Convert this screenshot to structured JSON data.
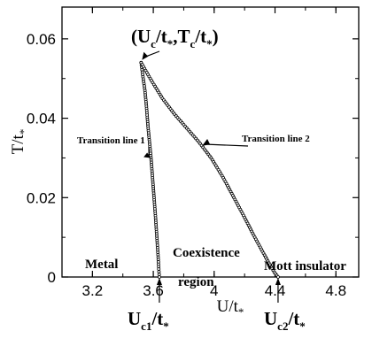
{
  "chart_data": {
    "type": "scatter",
    "title": "",
    "xlabel": "U/t",
    "xlabel_sub": "*",
    "ylabel": "T/t",
    "ylabel_sub": "*",
    "xlim": [
      3.0,
      4.95
    ],
    "ylim": [
      0,
      0.068
    ],
    "xticks": [
      3.2,
      3.6,
      4,
      4.4,
      4.8
    ],
    "xtick_labels": [
      "3.2",
      "3.6",
      "4",
      "4.4",
      "4.8"
    ],
    "yticks": [
      0,
      0.02,
      0.04,
      0.06
    ],
    "ytick_labels": [
      "0",
      "0.02",
      "0.04",
      "0.06"
    ],
    "grid": false,
    "series": [
      {
        "name": "Transition line 1",
        "x": [
          3.52,
          3.53,
          3.545,
          3.555,
          3.565,
          3.575,
          3.585,
          3.595,
          3.605,
          3.613,
          3.62,
          3.627,
          3.632,
          3.636,
          3.64
        ],
        "y": [
          0.054,
          0.051,
          0.047,
          0.043,
          0.038,
          0.034,
          0.03,
          0.025,
          0.02,
          0.016,
          0.012,
          0.008,
          0.005,
          0.002,
          0.0
        ]
      },
      {
        "name": "Transition line 2",
        "x": [
          3.52,
          3.58,
          3.66,
          3.74,
          3.82,
          3.9,
          3.98,
          4.06,
          4.13,
          4.2,
          4.26,
          4.31,
          4.36,
          4.395,
          4.42
        ],
        "y": [
          0.054,
          0.05,
          0.045,
          0.041,
          0.0375,
          0.034,
          0.03,
          0.025,
          0.02,
          0.015,
          0.0105,
          0.007,
          0.0035,
          0.0012,
          0.0
        ]
      }
    ],
    "labels": {
      "critical_point": "(U",
      "critical_point_parts": [
        "(U",
        "c",
        "/t",
        "*",
        ",T",
        "c",
        "/t",
        "*",
        ")"
      ],
      "line1": "Transition line 1",
      "line2": "Transition line 2",
      "metal": "Metal",
      "coexistence_1": "Coexistence",
      "coexistence_2": "region",
      "mott": "Mott insulator",
      "uc1_parts": [
        "U",
        "c1",
        "/t",
        "*"
      ],
      "uc2_parts": [
        "U",
        "c2",
        "/t",
        "*"
      ]
    }
  }
}
